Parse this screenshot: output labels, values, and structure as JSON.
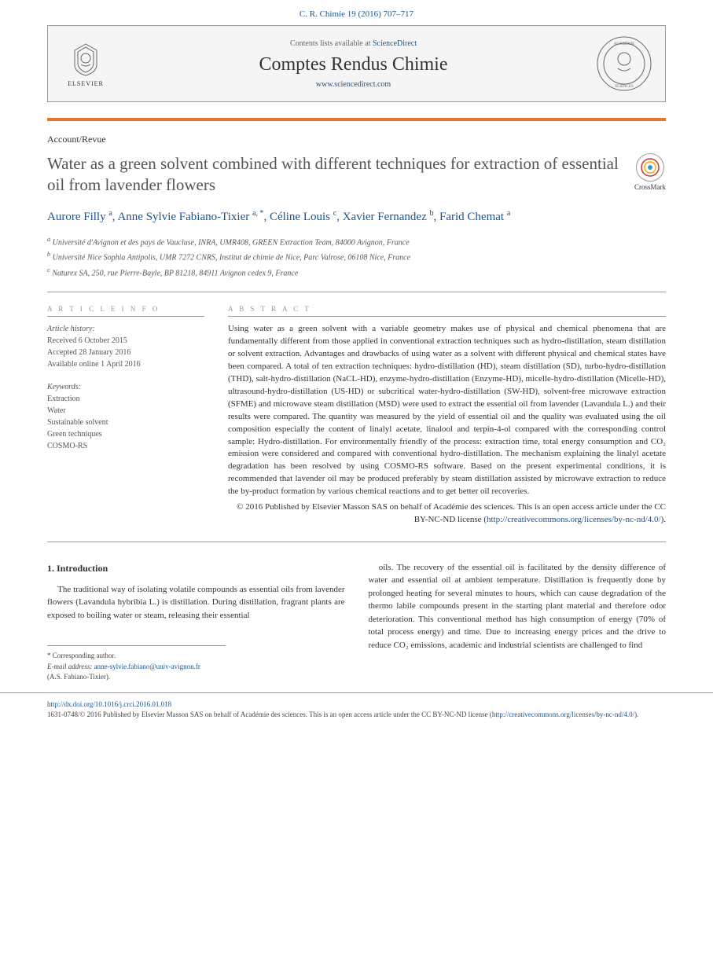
{
  "citation": "C. R. Chimie 19 (2016) 707–717",
  "banner": {
    "elsevier": "ELSEVIER",
    "contents_prefix": "Contents lists available at ",
    "sciencedirect": "ScienceDirect",
    "journal_name": "Comptes Rendus Chimie",
    "journal_url": "www.sciencedirect.com"
  },
  "article_type": "Account/Revue",
  "title": "Water as a green solvent combined with different techniques for extraction of essential oil from lavender flowers",
  "crossmark": "CrossMark",
  "authors_html": "Aurore Filly <sup>a</sup>, Anne Sylvie Fabiano-Tixier <sup>a, *</sup>, Céline Louis <sup>c</sup>, Xavier Fernandez <sup>b</sup>, Farid Chemat <sup>a</sup>",
  "affiliations": [
    "a Université d'Avignon et des pays de Vaucluse, INRA, UMR408, GREEN Extraction Team, 84000 Avignon, France",
    "b Université Nice Sophia Antipolis, UMR 7272 CNRS, Institut de chimie de Nice, Parc Valrose, 06108 Nice, France",
    "c Naturex SA, 250, rue Pierre-Bayle, BP 81218, 84911 Avignon cedex 9, France"
  ],
  "article_info": {
    "heading": "A R T I C L E   I N F O",
    "history_label": "Article history:",
    "received": "Received 6 October 2015",
    "accepted": "Accepted 28 January 2016",
    "online": "Available online 1 April 2016",
    "keywords_label": "Keywords:",
    "keywords": [
      "Extraction",
      "Water",
      "Sustainable solvent",
      "Green techniques",
      "COSMO-RS"
    ]
  },
  "abstract": {
    "heading": "A B S T R A C T",
    "text": "Using water as a green solvent with a variable geometry makes use of physical and chemical phenomena that are fundamentally different from those applied in conventional extraction techniques such as hydro-distillation, steam distillation or solvent extraction. Advantages and drawbacks of using water as a solvent with different physical and chemical states have been compared. A total of ten extraction techniques: hydro-distillation (HD), steam distillation (SD), turbo-hydro-distillation (THD), salt-hydro-distillation (NaCL-HD), enzyme-hydro-distillation (Enzyme-HD), micelle-hydro-distillation (Micelle-HD), ultrasound-hydro-distillation (US-HD) or subcritical water-hydro-distillation (SW-HD), solvent-free microwave extraction (SFME) and microwave steam distillation (MSD) were used to extract the essential oil from lavender (Lavandula L.) and their results were compared. The quantity was measured by the yield of essential oil and the quality was evaluated using the oil composition especially the content of linalyl acetate, linalool and terpin-4-ol compared with the corresponding control sample: Hydro-distillation. For environmentally friendly of the process: extraction time, total energy consumption and CO₂ emission were considered and compared with conventional hydro-distillation. The mechanism explaining the linalyl acetate degradation has been resolved by using COSMO-RS software. Based on the present experimental conditions, it is recommended that lavender oil may be produced preferably by steam distillation assisted by microwave extraction to reduce the by-product formation by various chemical reactions and to get better oil recoveries.",
    "copyright": "© 2016 Published by Elsevier Masson SAS on behalf of Académie des sciences. This is an open access article under the CC BY-NC-ND license (",
    "license_url": "http://creativecommons.org/licenses/by-nc-nd/4.0/",
    "close": ")."
  },
  "intro": {
    "heading": "1.  Introduction",
    "col1": "The traditional way of isolating volatile compounds as essential oils from lavender flowers (Lavandula hybribia L.) is distillation. During distillation, fragrant plants are exposed to boiling water or steam, releasing their essential",
    "col2": "oils. The recovery of the essential oil is facilitated by the density difference of water and essential oil at ambient temperature. Distillation is frequently done by prolonged heating for several minutes to hours, which can cause degradation of the thermo labile compounds present in the starting plant material and therefore odor deterioration. This conventional method has high consumption of energy (70% of total process energy) and time. Due to increasing energy prices and the drive to reduce CO₂ emissions, academic and industrial scientists are challenged to find"
  },
  "corresponding": {
    "label": "* Corresponding author.",
    "email_label": "E-mail address: ",
    "email": "anne-sylvie.fabiano@univ-avignon.fr",
    "name": "(A.S. Fabiano-Tixier)."
  },
  "footer": {
    "doi": "http://dx.doi.org/10.1016/j.crci.2016.01.018",
    "line": "1631-0748/© 2016 Published by Elsevier Masson SAS on behalf of Académie des sciences. This is an open access article under the CC BY-NC-ND license (",
    "url": "http://creativecommons.org/licenses/by-nc-nd/4.0/",
    "close": ")."
  },
  "colors": {
    "link": "#1a5490",
    "orange": "#e8762d",
    "text": "#333333",
    "gray": "#999999"
  }
}
